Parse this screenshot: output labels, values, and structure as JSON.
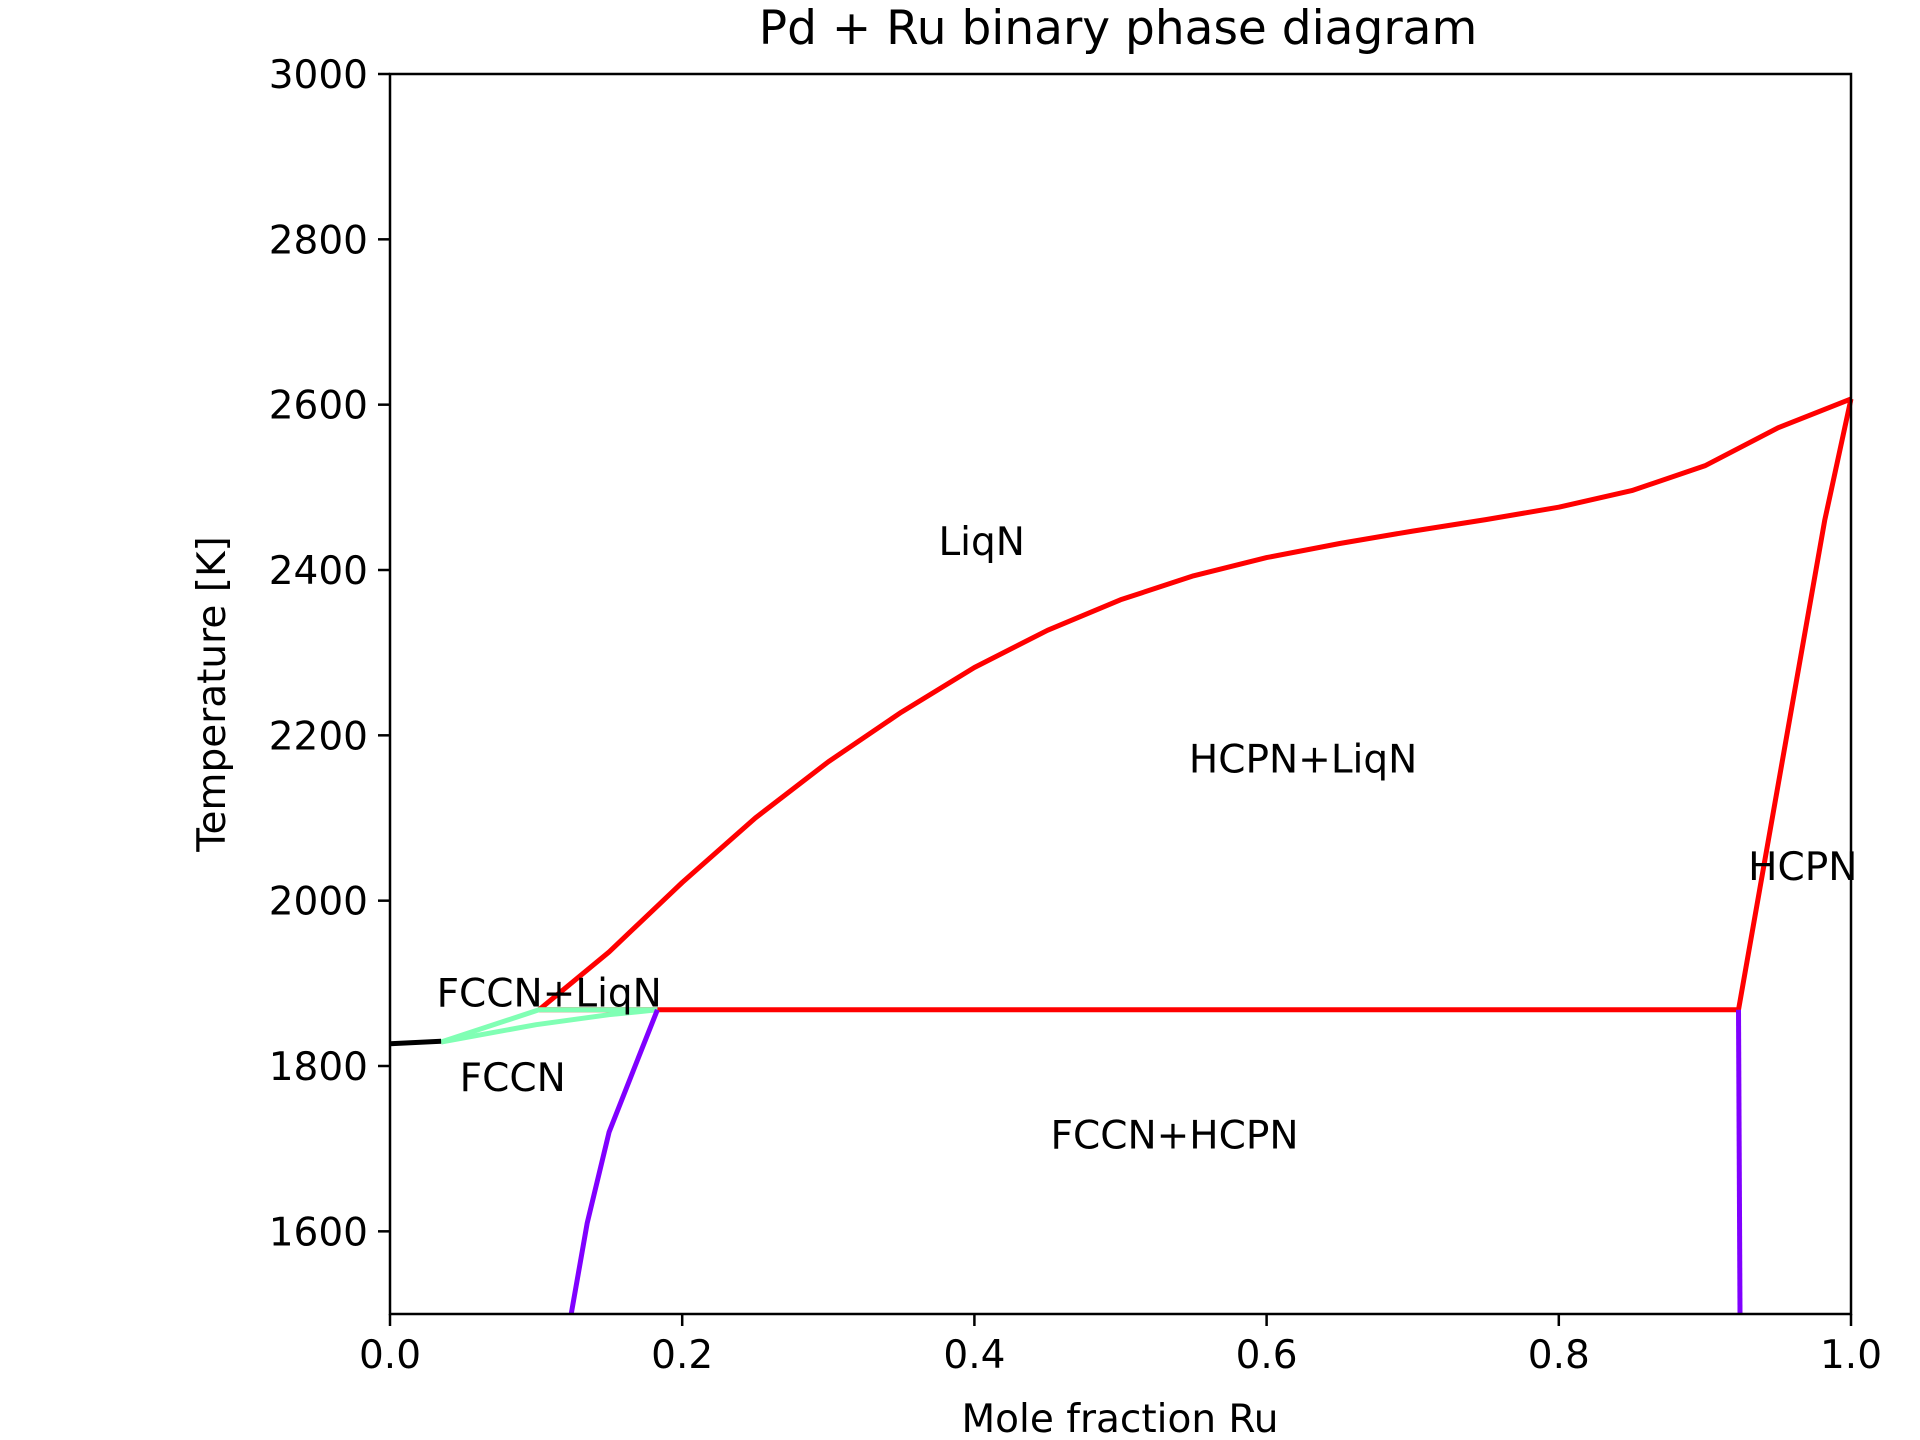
{
  "chart_data": {
    "type": "line",
    "title": "Pd + Ru binary phase diagram",
    "xlabel": "Mole fraction Ru",
    "ylabel": "Temperature [K]",
    "xlim": [
      0.0,
      1.0
    ],
    "ylim": [
      1500,
      3000
    ],
    "xticks": [
      0.0,
      0.2,
      0.4,
      0.6,
      0.8,
      1.0
    ],
    "xtick_labels": [
      "0.0",
      "0.2",
      "0.4",
      "0.6",
      "0.8",
      "1.0"
    ],
    "yticks": [
      1600,
      1800,
      2000,
      2200,
      2400,
      2600,
      2800,
      3000
    ],
    "ytick_labels": [
      "1600",
      "1800",
      "2000",
      "2200",
      "2400",
      "2600",
      "2800",
      "3000"
    ],
    "grid": false,
    "legend": "none",
    "series": [
      {
        "color": "#ff0000",
        "points": [
          [
            0.102,
            1868
          ],
          [
            0.15,
            1938
          ],
          [
            0.2,
            2022
          ],
          [
            0.25,
            2100
          ],
          [
            0.3,
            2168
          ],
          [
            0.35,
            2228
          ],
          [
            0.4,
            2282
          ],
          [
            0.45,
            2327
          ],
          [
            0.5,
            2364
          ],
          [
            0.55,
            2393
          ],
          [
            0.6,
            2415
          ],
          [
            0.65,
            2432
          ],
          [
            0.7,
            2447
          ],
          [
            0.75,
            2461
          ],
          [
            0.8,
            2476
          ],
          [
            0.85,
            2496
          ],
          [
            0.9,
            2526
          ],
          [
            0.95,
            2572
          ],
          [
            1.0,
            2607
          ]
        ]
      },
      {
        "color": "#ff0000",
        "points": [
          [
            1.0,
            2607
          ],
          [
            0.982,
            2460
          ],
          [
            0.923,
            1868
          ]
        ]
      },
      {
        "color": "#ff0000",
        "points": [
          [
            0.102,
            1868
          ],
          [
            0.923,
            1868
          ]
        ]
      },
      {
        "color": "#80ffb4",
        "points": [
          [
            0.035,
            1829
          ],
          [
            0.102,
            1868
          ],
          [
            0.15,
            1868
          ],
          [
            0.183,
            1868
          ]
        ]
      },
      {
        "color": "#80ffb4",
        "points": [
          [
            0.035,
            1829
          ],
          [
            0.1,
            1850
          ],
          [
            0.15,
            1862
          ],
          [
            0.183,
            1868
          ]
        ]
      },
      {
        "color": "#000000",
        "points": [
          [
            0.0,
            1827
          ],
          [
            0.035,
            1830
          ]
        ]
      },
      {
        "color": "#8000ff",
        "points": [
          [
            0.183,
            1868
          ],
          [
            0.17,
            1810
          ],
          [
            0.15,
            1720
          ],
          [
            0.135,
            1610
          ],
          [
            0.124,
            1500
          ]
        ]
      },
      {
        "color": "#8000ff",
        "points": [
          [
            0.923,
            1868
          ],
          [
            0.924,
            1500
          ]
        ]
      }
    ],
    "annotations": [
      {
        "text": "LiqN",
        "x": 0.405,
        "y": 2418
      },
      {
        "text": "HCPN+LiqN",
        "x": 0.625,
        "y": 2155
      },
      {
        "text": "HCPN",
        "x": 0.967,
        "y": 2025
      },
      {
        "text": "FCCN+LiqN",
        "x": 0.109,
        "y": 1872
      },
      {
        "text": "FCCN",
        "x": 0.084,
        "y": 1770
      },
      {
        "text": "FCCN+HCPN",
        "x": 0.537,
        "y": 1700
      }
    ]
  }
}
